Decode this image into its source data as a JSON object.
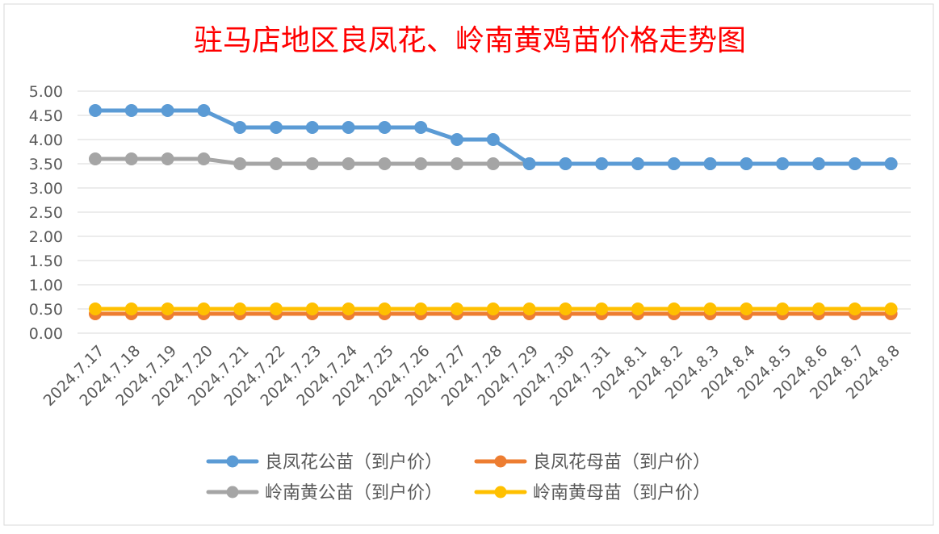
{
  "chart_data": {
    "type": "line",
    "title": "驻马店地区良凤花、岭南黄鸡苗价格走势图",
    "title_color": "#FF0000",
    "xlabel": "",
    "ylabel": "",
    "ylim": [
      0,
      5
    ],
    "yticks": [
      "0.00",
      "0.50",
      "1.00",
      "1.50",
      "2.00",
      "2.50",
      "3.00",
      "3.50",
      "4.00",
      "4.50",
      "5.00"
    ],
    "grid": "horizontal",
    "legend_position": "bottom",
    "categories": [
      "2024.7.17",
      "2024.7.18",
      "2024.7.19",
      "2024.7.20",
      "2024.7.21",
      "2024.7.22",
      "2024.7.23",
      "2024.7.24",
      "2024.7.25",
      "2024.7.26",
      "2024.7.27",
      "2024.7.28",
      "2024.7.29",
      "2024.7.30",
      "2024.7.31",
      "2024.8.1",
      "2024.8.2",
      "2024.8.3",
      "2024.8.4",
      "2024.8.5",
      "2024.8.6",
      "2024.8.7",
      "2024.8.8"
    ],
    "series": [
      {
        "name": "良凤花公苗（到户价）",
        "color": "#5B9BD5",
        "values": [
          4.6,
          4.6,
          4.6,
          4.6,
          4.25,
          4.25,
          4.25,
          4.25,
          4.25,
          4.25,
          4.0,
          4.0,
          3.5,
          3.5,
          3.5,
          3.5,
          3.5,
          3.5,
          3.5,
          3.5,
          3.5,
          3.5,
          3.5
        ]
      },
      {
        "name": "良凤花母苗（到户价）",
        "color": "#ED7D31",
        "values": [
          0.4,
          0.4,
          0.4,
          0.4,
          0.4,
          0.4,
          0.4,
          0.4,
          0.4,
          0.4,
          0.4,
          0.4,
          0.4,
          0.4,
          0.4,
          0.4,
          0.4,
          0.4,
          0.4,
          0.4,
          0.4,
          0.4,
          0.4
        ]
      },
      {
        "name": "岭南黄公苗（到户价）",
        "color": "#A5A5A5",
        "values": [
          3.6,
          3.6,
          3.6,
          3.6,
          3.5,
          3.5,
          3.5,
          3.5,
          3.5,
          3.5,
          3.5,
          3.5,
          3.5,
          3.5,
          3.5,
          3.5,
          3.5,
          3.5,
          3.5,
          3.5,
          3.5,
          3.5,
          3.5
        ]
      },
      {
        "name": "岭南黄母苗（到户价）",
        "color": "#FFC000",
        "values": [
          0.5,
          0.5,
          0.5,
          0.5,
          0.5,
          0.5,
          0.5,
          0.5,
          0.5,
          0.5,
          0.5,
          0.5,
          0.5,
          0.5,
          0.5,
          0.5,
          0.5,
          0.5,
          0.5,
          0.5,
          0.5,
          0.5,
          0.5
        ]
      }
    ],
    "draw_order": [
      2,
      0,
      1,
      3
    ],
    "legend_rows": [
      [
        0,
        1
      ],
      [
        2,
        3
      ]
    ]
  }
}
